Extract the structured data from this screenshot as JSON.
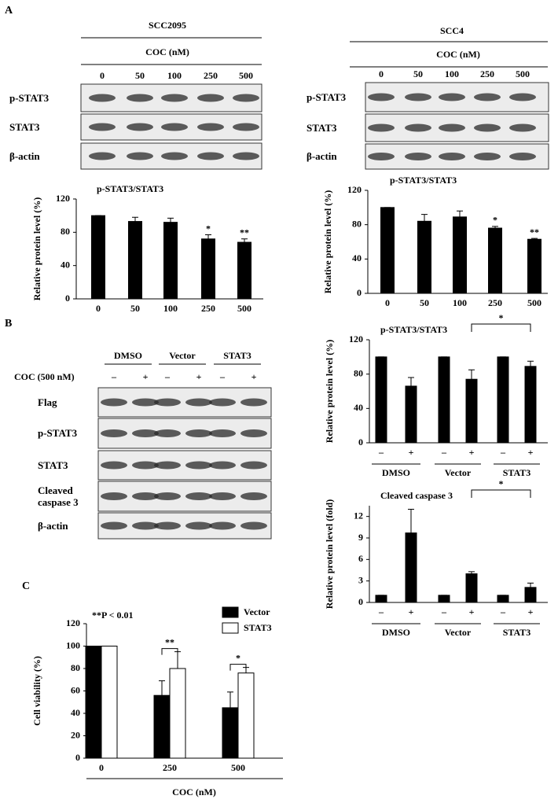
{
  "panel_labels": [
    "A",
    "B",
    "C"
  ],
  "blots": [
    {
      "title": "SCC2095",
      "treatment": "COC (nM)",
      "lanes": [
        "0",
        "50",
        "100",
        "250",
        "500"
      ],
      "rows": [
        "p-STAT3",
        "STAT3",
        "β-actin"
      ]
    },
    {
      "title": "SCC4",
      "treatment": "COC (nM)",
      "lanes": [
        "0",
        "50",
        "100",
        "250",
        "500"
      ],
      "rows": [
        "p-STAT3",
        "STAT3",
        "β-actin"
      ]
    },
    {
      "groups": [
        "DMSO",
        "Vector",
        "STAT3"
      ],
      "treatment": "COC (500 nM)",
      "lanes": [
        "–",
        "+",
        "–",
        "+",
        "–",
        "+"
      ],
      "rows": [
        "Flag",
        "p-STAT3",
        "STAT3",
        "Cleaved caspase 3",
        "β-actin"
      ]
    }
  ],
  "chart_data": [
    {
      "type": "bar",
      "title": "p-STAT3/STAT3",
      "ylabel": "Relative protein level (%)",
      "categories": [
        "0",
        "50",
        "100",
        "250",
        "500"
      ],
      "values": [
        100,
        93,
        92,
        72,
        68
      ],
      "errors": [
        0,
        5,
        5,
        5,
        4
      ],
      "significance": [
        null,
        null,
        null,
        "*",
        "**"
      ],
      "color": "#000000",
      "ylim": [
        0,
        120
      ],
      "yticks": [
        0,
        40,
        80,
        120
      ]
    },
    {
      "type": "bar",
      "title": "p-STAT3/STAT3",
      "ylabel": "Relative protein level (%)",
      "categories": [
        "0",
        "50",
        "100",
        "250",
        "500"
      ],
      "values": [
        100,
        84,
        89,
        76,
        63
      ],
      "errors": [
        0,
        8,
        7,
        2,
        1
      ],
      "significance": [
        null,
        null,
        null,
        "*",
        "**"
      ],
      "color": "#000000",
      "ylim": [
        0,
        120
      ],
      "yticks": [
        0,
        40,
        80,
        120
      ]
    },
    {
      "type": "bar",
      "title": "p-STAT3/STAT3",
      "ylabel": "Relative protein level (%)",
      "categories": [
        "–",
        "+",
        "–",
        "+",
        "–",
        "+"
      ],
      "groups": [
        "DMSO",
        "Vector",
        "STAT3"
      ],
      "values": [
        100,
        66,
        100,
        74,
        100,
        89
      ],
      "errors": [
        0,
        10,
        0,
        11,
        0,
        6
      ],
      "color": "#000000",
      "brackets": [
        {
          "from": 3,
          "to": 5,
          "label": "*"
        }
      ],
      "ylim": [
        0,
        120
      ],
      "yticks": [
        0,
        40,
        80,
        120
      ]
    },
    {
      "type": "bar",
      "title": "Cleaved caspase 3",
      "ylabel": "Relative protein level (fold)",
      "categories": [
        "–",
        "+",
        "–",
        "+",
        "–",
        "+"
      ],
      "groups": [
        "DMSO",
        "Vector",
        "STAT3"
      ],
      "values": [
        1,
        9.7,
        1,
        4,
        1,
        2.1
      ],
      "errors": [
        0,
        3.3,
        0,
        0.3,
        0,
        0.6
      ],
      "color": "#000000",
      "brackets": [
        {
          "from": 3,
          "to": 5,
          "label": "*"
        }
      ],
      "ylim": [
        0,
        13.5
      ],
      "yticks": [
        0,
        3,
        6,
        9,
        12
      ]
    },
    {
      "type": "grouped-bar",
      "note": "**P < 0.01",
      "xlabel": "COC (nM)",
      "ylabel": "Cell viability (%)",
      "categories": [
        "0",
        "250",
        "500"
      ],
      "series": [
        {
          "name": "Vector",
          "color": "#000000",
          "values": [
            100,
            56,
            45
          ],
          "errors": [
            0,
            13,
            14
          ]
        },
        {
          "name": "STAT3",
          "color": "#ffffff",
          "values": [
            100,
            80,
            76
          ],
          "errors": [
            0,
            15,
            5
          ]
        }
      ],
      "significance": [
        null,
        "**",
        "*"
      ],
      "ylim": [
        0,
        120
      ],
      "yticks": [
        0,
        20,
        40,
        60,
        80,
        100,
        120
      ]
    }
  ]
}
